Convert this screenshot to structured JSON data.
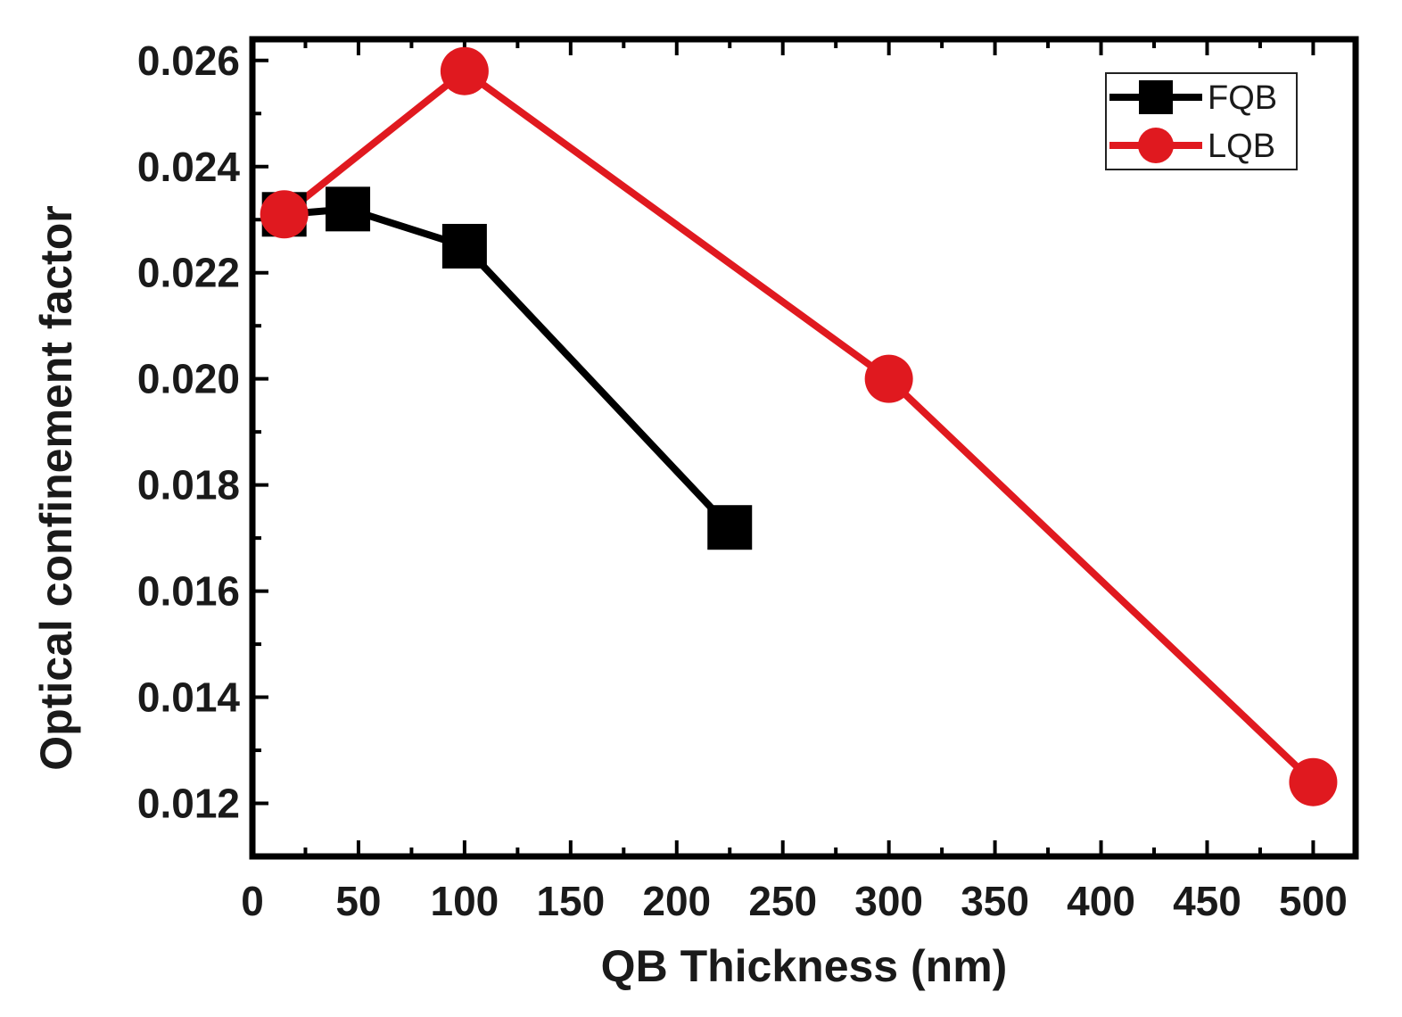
{
  "chart_data": {
    "type": "line",
    "title": "",
    "xlabel": "QB Thickness (nm)",
    "ylabel": "Optical confinement factor",
    "xlim": [
      0,
      520
    ],
    "ylim": [
      0.011,
      0.0264
    ],
    "xticks": [
      0,
      50,
      100,
      150,
      200,
      250,
      300,
      350,
      400,
      450,
      500
    ],
    "xtick_labels": [
      "0",
      "50",
      "100",
      "150",
      "200",
      "250",
      "300",
      "350",
      "400",
      "450",
      "500"
    ],
    "yticks": [
      0.012,
      0.014,
      0.016,
      0.018,
      0.02,
      0.022,
      0.024,
      0.026
    ],
    "ytick_labels": [
      "0.012",
      "0.014",
      "0.016",
      "0.018",
      "0.020",
      "0.022",
      "0.024",
      "0.026"
    ],
    "legend_position": "top-right",
    "grid": false,
    "series": [
      {
        "name": "FQB",
        "color": "#000000",
        "marker": "square",
        "x": [
          15,
          45,
          100,
          225
        ],
        "y": [
          0.0231,
          0.0232,
          0.0225,
          0.0172
        ]
      },
      {
        "name": "LQB",
        "color": "#e0191f",
        "marker": "circle",
        "x": [
          15,
          100,
          300,
          500
        ],
        "y": [
          0.0231,
          0.0258,
          0.02,
          0.0124
        ]
      }
    ]
  }
}
